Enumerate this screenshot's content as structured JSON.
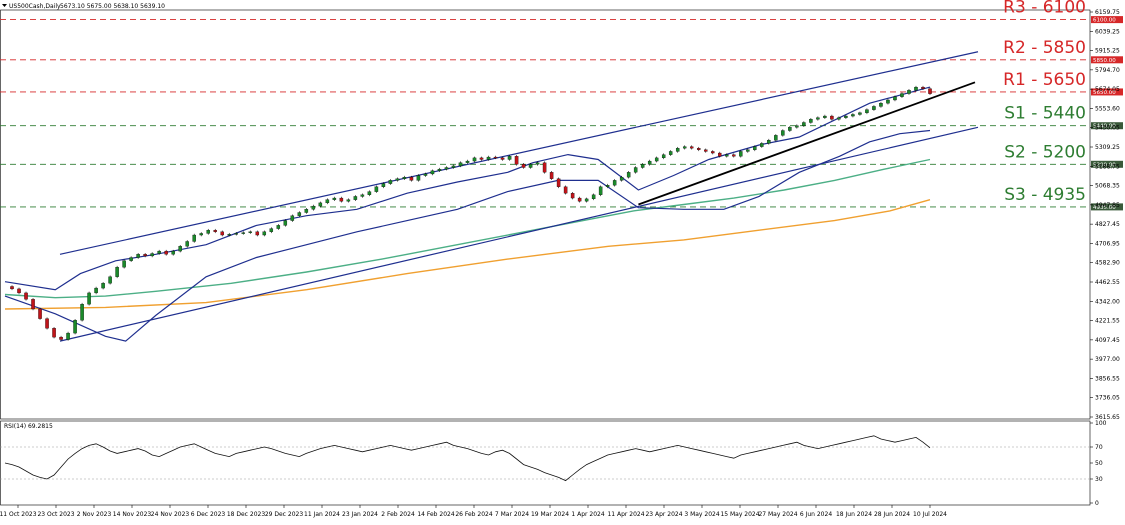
{
  "chart_data": {
    "type": "candlestick",
    "header": {
      "symbol_text": "US500Cash,Daily",
      "ohlc_text": "5673.10 5675.00 5638.10 5639.10"
    },
    "price_ylim": [
      3615.65,
      6159.75
    ],
    "y_ticks": [
      "6159.75",
      "6039.25",
      "5915.25",
      "5794.70",
      "5674.05",
      "5553.60",
      "5430.05",
      "5309.25",
      "5188.75",
      "5068.35",
      "4947.85",
      "4827.45",
      "4706.95",
      "4582.90",
      "4462.55",
      "4342.00",
      "4221.55",
      "4097.45",
      "3977.00",
      "3856.55",
      "3736.05",
      "3615.65"
    ],
    "x_ticks": [
      "11 Oct 2023",
      "23 Oct 2023",
      "2 Nov 2023",
      "14 Nov 2023",
      "24 Nov 2023",
      "6 Dec 2023",
      "18 Dec 2023",
      "29 Dec 2023",
      "11 Jan 2024",
      "23 Jan 2024",
      "2 Feb 2024",
      "14 Feb 2024",
      "26 Feb 2024",
      "7 Mar 2024",
      "19 Mar 2024",
      "1 Apr 2024",
      "11 Apr 2024",
      "23 Apr 2024",
      "3 May 2024",
      "15 May 2024",
      "27 May 2024",
      "6 Jun 2024",
      "18 Jun 2024",
      "28 Jun 2024",
      "10 Jul 2024"
    ],
    "levels": [
      {
        "name": "R3",
        "label": "R3 - 6100",
        "value": 6100,
        "box_text": "6100.00",
        "color": "#d62728"
      },
      {
        "name": "R2",
        "label": "R2 - 5850",
        "value": 5850,
        "box_text": "5850.00",
        "color": "#d62728"
      },
      {
        "name": "R1",
        "label": "R1 - 5650",
        "value": 5650,
        "box_text": "5650.00",
        "color": "#d62728"
      },
      {
        "name": "S1",
        "label": "S1 - 5440",
        "value": 5440,
        "box_text": "5440.00",
        "color": "#2e7d32"
      },
      {
        "name": "S2",
        "label": "S2 - 5200",
        "value": 5200,
        "box_text": "5200.00",
        "color": "#2e7d32"
      },
      {
        "name": "S3",
        "label": "S3 - 4935",
        "value": 4935,
        "box_text": "4935.00",
        "color": "#2e7d32"
      }
    ],
    "close_path": [
      4440,
      4425,
      4400,
      4360,
      4300,
      4240,
      4180,
      4125,
      4110,
      4150,
      4230,
      4330,
      4400,
      4430,
      4460,
      4500,
      4560,
      4600,
      4620,
      4640,
      4630,
      4645,
      4660,
      4640,
      4660,
      4690,
      4720,
      4760,
      4770,
      4790,
      4780,
      4760,
      4765,
      4770,
      4775,
      4780,
      4760,
      4780,
      4800,
      4820,
      4850,
      4880,
      4900,
      4920,
      4940,
      4960,
      4980,
      4990,
      4970,
      4980,
      5000,
      5010,
      5030,
      5060,
      5080,
      5100,
      5110,
      5120,
      5100,
      5130,
      5140,
      5160,
      5170,
      5180,
      5190,
      5210,
      5220,
      5240,
      5230,
      5245,
      5240,
      5230,
      5250,
      5200,
      5180,
      5200,
      5210,
      5150,
      5110,
      5060,
      5020,
      4990,
      4970,
      4985,
      5010,
      5060,
      5070,
      5100,
      5120,
      5150,
      5180,
      5200,
      5220,
      5240,
      5260,
      5280,
      5300,
      5310,
      5300,
      5290,
      5280,
      5270,
      5250,
      5260,
      5250,
      5280,
      5290,
      5310,
      5330,
      5350,
      5380,
      5410,
      5430,
      5440,
      5460,
      5480,
      5490,
      5500,
      5480,
      5490,
      5500,
      5510,
      5520,
      5540,
      5560,
      5580,
      5600,
      5620,
      5640,
      5660,
      5680,
      5670,
      5639
    ],
    "moving_averages": [
      {
        "name": "ma_green",
        "color": "#4caf86",
        "points": [
          [
            0,
            4390
          ],
          [
            10,
            4370
          ],
          [
            20,
            4380
          ],
          [
            30,
            4410
          ],
          [
            45,
            4460
          ],
          [
            60,
            4530
          ],
          [
            75,
            4610
          ],
          [
            90,
            4700
          ],
          [
            105,
            4790
          ],
          [
            115,
            4850
          ],
          [
            125,
            4910
          ],
          [
            135,
            4950
          ],
          [
            145,
            4990
          ],
          [
            155,
            5040
          ],
          [
            165,
            5100
          ],
          [
            175,
            5170
          ],
          [
            184,
            5230
          ]
        ]
      },
      {
        "name": "ma_orange",
        "color": "#f0a030",
        "points": [
          [
            0,
            4300
          ],
          [
            20,
            4310
          ],
          [
            40,
            4340
          ],
          [
            60,
            4420
          ],
          [
            80,
            4520
          ],
          [
            100,
            4610
          ],
          [
            120,
            4690
          ],
          [
            135,
            4730
          ],
          [
            150,
            4790
          ],
          [
            165,
            4850
          ],
          [
            176,
            4910
          ],
          [
            184,
            4980
          ]
        ]
      }
    ],
    "bollinger_upper": [
      [
        0,
        4470
      ],
      [
        10,
        4420
      ],
      [
        15,
        4520
      ],
      [
        22,
        4600
      ],
      [
        30,
        4640
      ],
      [
        40,
        4700
      ],
      [
        50,
        4820
      ],
      [
        60,
        4880
      ],
      [
        70,
        4920
      ],
      [
        80,
        5020
      ],
      [
        90,
        5090
      ],
      [
        100,
        5150
      ],
      [
        105,
        5210
      ],
      [
        112,
        5260
      ],
      [
        118,
        5230
      ],
      [
        126,
        5040
      ],
      [
        133,
        5130
      ],
      [
        140,
        5230
      ],
      [
        150,
        5320
      ],
      [
        158,
        5370
      ],
      [
        166,
        5490
      ],
      [
        172,
        5580
      ],
      [
        178,
        5630
      ],
      [
        184,
        5680
      ]
    ],
    "bollinger_lower": [
      [
        0,
        4380
      ],
      [
        10,
        4270
      ],
      [
        20,
        4130
      ],
      [
        24,
        4100
      ],
      [
        30,
        4260
      ],
      [
        40,
        4500
      ],
      [
        50,
        4620
      ],
      [
        60,
        4700
      ],
      [
        70,
        4780
      ],
      [
        80,
        4850
      ],
      [
        90,
        4920
      ],
      [
        100,
        5030
      ],
      [
        110,
        5100
      ],
      [
        118,
        5100
      ],
      [
        126,
        4930
      ],
      [
        135,
        4920
      ],
      [
        143,
        4920
      ],
      [
        150,
        5000
      ],
      [
        158,
        5150
      ],
      [
        166,
        5250
      ],
      [
        172,
        5340
      ],
      [
        178,
        5390
      ],
      [
        184,
        5410
      ]
    ],
    "trend_lines": [
      {
        "name": "channel_upper",
        "points": [
          [
            10,
            4640
          ],
          [
            195,
            5900
          ]
        ]
      },
      {
        "name": "channel_lower",
        "points": [
          [
            10,
            4100
          ],
          [
            195,
            5430
          ]
        ]
      },
      {
        "name": "trendline_black",
        "points": [
          [
            126,
            4950
          ],
          [
            193,
            5710
          ]
        ]
      }
    ],
    "rsi": {
      "label": "RSI(14) 69.2815",
      "ylim": [
        0,
        100
      ],
      "y_ticks": [
        "100",
        "70",
        "50",
        "30",
        "0"
      ],
      "values": [
        50,
        48,
        45,
        40,
        35,
        32,
        30,
        35,
        45,
        55,
        62,
        68,
        72,
        74,
        70,
        65,
        62,
        64,
        66,
        68,
        65,
        60,
        58,
        62,
        66,
        70,
        72,
        74,
        70,
        66,
        62,
        60,
        58,
        62,
        64,
        66,
        68,
        70,
        68,
        65,
        62,
        60,
        58,
        62,
        65,
        68,
        70,
        72,
        70,
        68,
        66,
        64,
        66,
        68,
        70,
        72,
        70,
        68,
        66,
        68,
        70,
        72,
        74,
        76,
        72,
        70,
        68,
        65,
        62,
        60,
        64,
        66,
        62,
        55,
        48,
        45,
        42,
        38,
        35,
        32,
        28,
        35,
        42,
        48,
        52,
        56,
        60,
        62,
        64,
        66,
        68,
        66,
        64,
        66,
        68,
        70,
        72,
        70,
        68,
        66,
        64,
        62,
        60,
        58,
        56,
        60,
        62,
        64,
        66,
        68,
        70,
        72,
        74,
        76,
        72,
        70,
        68,
        70,
        72,
        74,
        76,
        78,
        80,
        82,
        84,
        80,
        78,
        76,
        78,
        80,
        82,
        76,
        69
      ]
    }
  }
}
